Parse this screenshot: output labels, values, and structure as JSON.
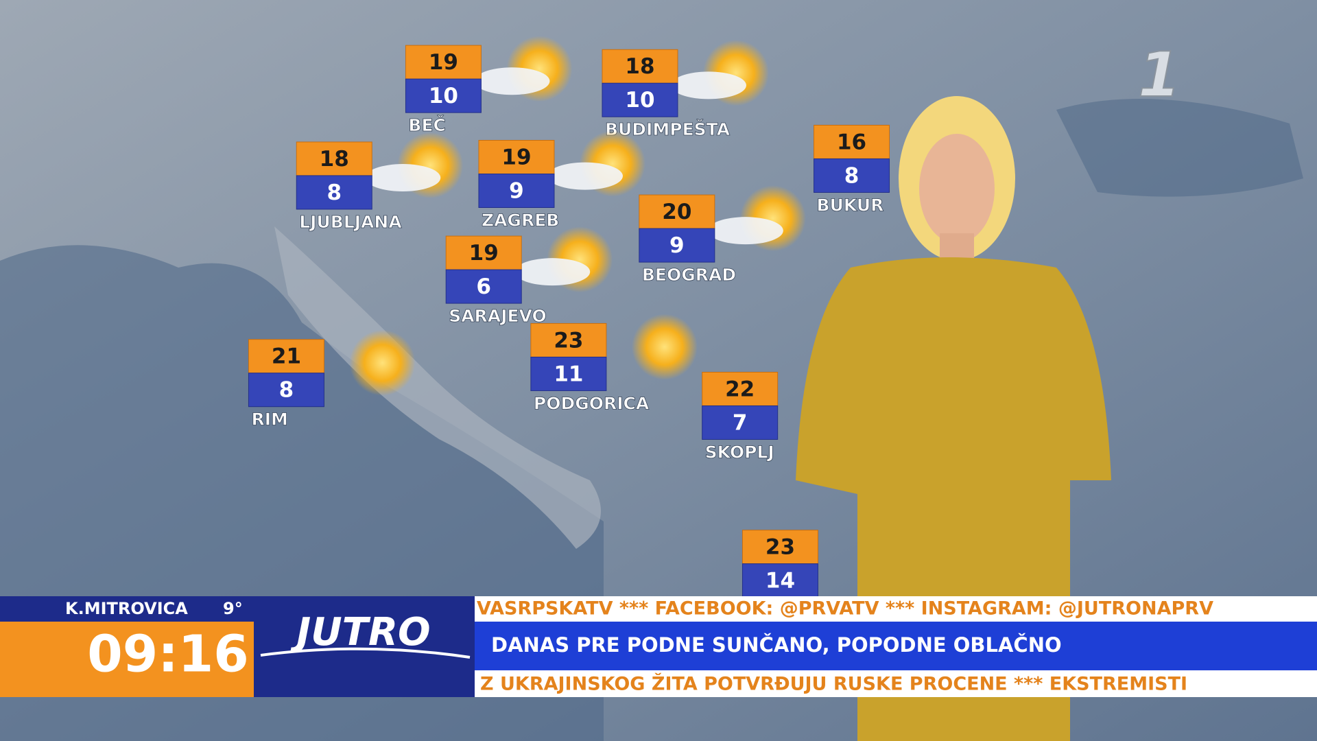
{
  "header": {
    "channel_logo": "1"
  },
  "cities": [
    {
      "name": "BEČ",
      "high": 19,
      "low": 10
    },
    {
      "name": "BUDIMPEŠTA",
      "high": 18,
      "low": 10
    },
    {
      "name": "LJUBLJANA",
      "high": 18,
      "low": 8
    },
    {
      "name": "ZAGREB",
      "high": 19,
      "low": 9
    },
    {
      "name": "BUKUR",
      "high": 16,
      "low": 8
    },
    {
      "name": "BEOGRAD",
      "high": 20,
      "low": 9
    },
    {
      "name": "SARAJEVO",
      "high": 19,
      "low": 6
    },
    {
      "name": "PODGORICA",
      "high": 23,
      "low": 11
    },
    {
      "name": "RIM",
      "high": 21,
      "low": 8
    },
    {
      "name": "SKOPLJ",
      "high": 22,
      "low": 7
    },
    {
      "name": null,
      "high": 23,
      "low": 14
    }
  ],
  "lower_third": {
    "location": "K.MITROVICA",
    "location_temp": "9°",
    "clock": "09:16",
    "show": "JUTRO",
    "ticker_top": "VASRPSKATV *** FACEBOOK: @PRVATV *** INSTAGRAM: @JUTRONAPRV",
    "headline": "DANAS PRE PODNE SUNČANO, POPODNE OBLAČNO",
    "ticker_bottom": "Z UKRAJINSKOG ŽITA POTVRĐUJU RUSKE PROCENE *** EKSTREMISTI"
  }
}
